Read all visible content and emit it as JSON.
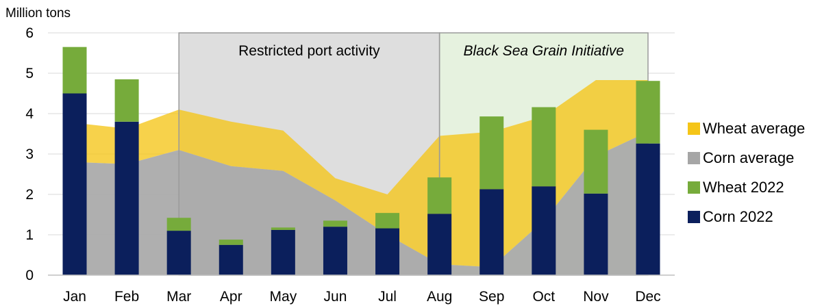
{
  "chart_data": {
    "type": "bar",
    "title": "",
    "ylabel": "Million tons",
    "xlabel": "",
    "ylim": [
      0,
      6
    ],
    "yticks": [
      0,
      1,
      2,
      3,
      4,
      5,
      6
    ],
    "grid": true,
    "legend_position": "right",
    "categories": [
      "Jan",
      "Feb",
      "Mar",
      "Apr",
      "May",
      "Jun",
      "Jul",
      "Aug",
      "Sep",
      "Oct",
      "Nov",
      "Dec"
    ],
    "series": [
      {
        "name": "Corn 2022",
        "kind": "stacked-bar",
        "color": "#0b1f5c",
        "values": [
          4.5,
          3.8,
          1.1,
          0.75,
          1.12,
          1.2,
          1.16,
          1.52,
          2.13,
          2.2,
          2.02,
          3.26
        ]
      },
      {
        "name": "Wheat 2022",
        "kind": "stacked-bar",
        "color": "#76ab3b",
        "values": [
          1.15,
          1.05,
          0.32,
          0.13,
          0.06,
          0.15,
          0.38,
          0.9,
          1.8,
          1.96,
          1.58,
          1.55
        ]
      },
      {
        "name": "Corn average",
        "kind": "area",
        "color": "#a6a6a6",
        "values": [
          2.8,
          2.75,
          3.1,
          2.7,
          2.58,
          1.85,
          1.0,
          0.27,
          0.2,
          1.35,
          2.95,
          3.55
        ]
      },
      {
        "name": "Wheat average",
        "kind": "stacked-area",
        "color": "#f5c518",
        "values": [
          0.97,
          0.88,
          1.0,
          1.1,
          1.0,
          0.55,
          1.0,
          3.18,
          3.35,
          2.58,
          1.88,
          1.28
        ]
      }
    ],
    "regions": [
      {
        "label": "Restricted port activity",
        "from": "Mar",
        "to": "Aug",
        "fill": "#dedede",
        "italic": false
      },
      {
        "label": "Black Sea Grain Initiative",
        "from": "Aug",
        "to": "Dec",
        "fill": "#e6f2df",
        "italic": true
      }
    ]
  },
  "legend": [
    {
      "label": "Wheat average",
      "color": "#f5c518"
    },
    {
      "label": "Corn average",
      "color": "#a6a6a6"
    },
    {
      "label": "Wheat 2022",
      "color": "#76ab3b"
    },
    {
      "label": "Corn 2022",
      "color": "#0b1f5c"
    }
  ]
}
